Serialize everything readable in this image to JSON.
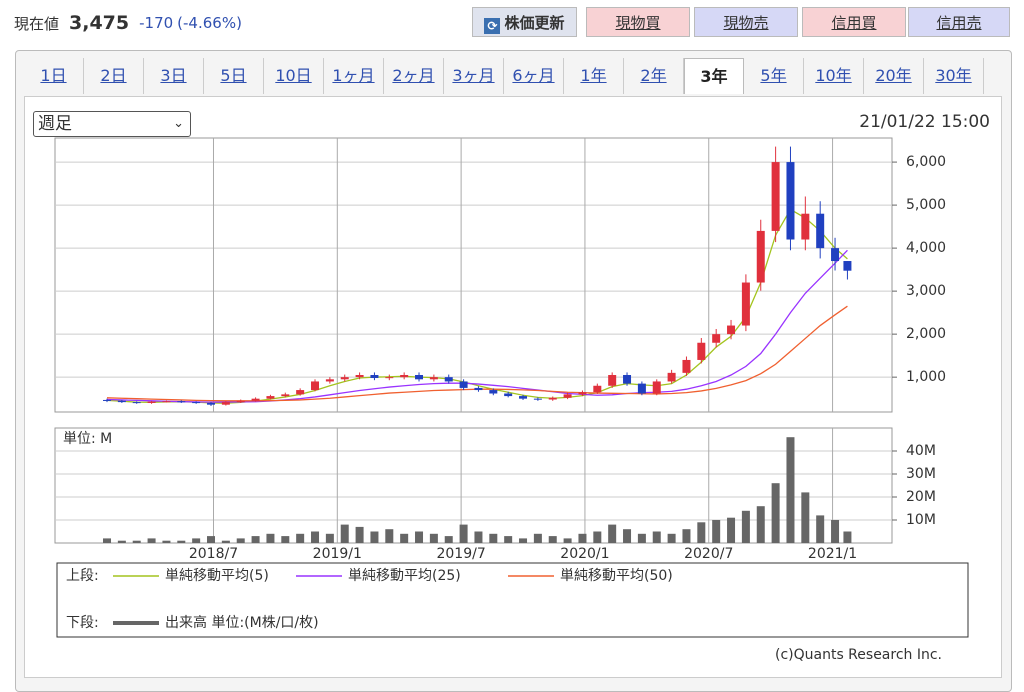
{
  "header": {
    "label": "現在値",
    "price": "3,475",
    "change": "-170",
    "change_pct": "(-4.66%)",
    "buttons": [
      "株価更新",
      "現物買",
      "現物売",
      "信用買",
      "信用売"
    ]
  },
  "tabs": {
    "items": [
      "1日",
      "2日",
      "3日",
      "5日",
      "10日",
      "1ヶ月",
      "2ヶ月",
      "3ヶ月",
      "6ヶ月",
      "1年",
      "2年",
      "3年",
      "5年",
      "10年",
      "20年",
      "30年"
    ],
    "selected": 11
  },
  "select": {
    "value": "週足"
  },
  "timestamp": "21/01/22 15:00",
  "chart_data": [
    {
      "type": "candlestick",
      "color_up": "#e0303c",
      "color_down": "#2040c0",
      "grid": true,
      "xlim": [
        2017.86,
        2021.24
      ],
      "ylim": [
        190,
        6560
      ],
      "yticks": [
        {
          "value": 1000,
          "label": "1,000"
        },
        {
          "value": 2000,
          "label": "2,000"
        },
        {
          "value": 3000,
          "label": "3,000"
        },
        {
          "value": 4000,
          "label": "4,000"
        },
        {
          "value": 5000,
          "label": "5,000"
        },
        {
          "value": 6000,
          "label": "6,000"
        }
      ],
      "x": [
        2018.07,
        2018.13,
        2018.19,
        2018.25,
        2018.31,
        2018.37,
        2018.43,
        2018.49,
        2018.55,
        2018.61,
        2018.67,
        2018.73,
        2018.79,
        2018.85,
        2018.91,
        2018.97,
        2019.03,
        2019.09,
        2019.15,
        2019.21,
        2019.27,
        2019.33,
        2019.39,
        2019.45,
        2019.51,
        2019.57,
        2019.63,
        2019.69,
        2019.75,
        2019.81,
        2019.87,
        2019.93,
        2019.99,
        2020.05,
        2020.11,
        2020.17,
        2020.23,
        2020.29,
        2020.35,
        2020.41,
        2020.47,
        2020.53,
        2020.59,
        2020.65,
        2020.71,
        2020.77,
        2020.83,
        2020.89,
        2020.95,
        2021.01,
        2021.06
      ],
      "open": [
        470,
        450,
        420,
        400,
        430,
        440,
        420,
        400,
        360,
        420,
        450,
        500,
        560,
        600,
        700,
        900,
        950,
        1000,
        1050,
        980,
        1000,
        1050,
        950,
        1000,
        900,
        750,
        700,
        620,
        560,
        500,
        480,
        520,
        600,
        650,
        800,
        1050,
        850,
        620,
        900,
        1100,
        1400,
        1800,
        2000,
        2200,
        3200,
        4400,
        6000,
        4200,
        4800,
        4000,
        3700
      ],
      "high": [
        500,
        470,
        440,
        450,
        460,
        460,
        440,
        420,
        440,
        480,
        530,
        590,
        640,
        740,
        950,
        1000,
        1060,
        1110,
        1110,
        1060,
        1110,
        1110,
        1060,
        1060,
        950,
        790,
        740,
        660,
        590,
        530,
        550,
        640,
        690,
        850,
        1110,
        1110,
        900,
        950,
        1170,
        1480,
        1910,
        2120,
        2330,
        3390,
        4660,
        6360,
        6360,
        5200,
        5090,
        4240,
        3700
      ],
      "low": [
        420,
        400,
        380,
        380,
        410,
        400,
        380,
        330,
        340,
        400,
        430,
        480,
        530,
        570,
        670,
        850,
        900,
        950,
        930,
        930,
        950,
        900,
        900,
        850,
        700,
        660,
        580,
        530,
        470,
        450,
        450,
        490,
        560,
        610,
        750,
        800,
        580,
        580,
        850,
        1030,
        1320,
        1690,
        1880,
        2070,
        3010,
        4140,
        3950,
        3950,
        3760,
        3480,
        3270
      ],
      "close": [
        450,
        420,
        400,
        430,
        440,
        420,
        400,
        360,
        420,
        450,
        500,
        560,
        600,
        700,
        900,
        950,
        1000,
        1050,
        980,
        1000,
        1050,
        950,
        1000,
        900,
        750,
        700,
        620,
        560,
        500,
        480,
        520,
        600,
        650,
        800,
        1050,
        850,
        620,
        900,
        1100,
        1400,
        1800,
        2000,
        2200,
        3200,
        4400,
        6000,
        4200,
        4800,
        4000,
        3700,
        3475
      ],
      "series": [
        {
          "name": "単純移動平均(5)",
          "color": "#a3c41e",
          "values": [
            460,
            440,
            420,
            415,
            425,
            430,
            420,
            400,
            395,
            415,
            445,
            490,
            540,
            600,
            690,
            800,
            900,
            980,
            1000,
            1010,
            1020,
            1000,
            990,
            960,
            890,
            800,
            720,
            650,
            580,
            530,
            510,
            530,
            570,
            640,
            780,
            850,
            820,
            800,
            850,
            1050,
            1350,
            1700,
            1950,
            2400,
            3200,
            4300,
            4900,
            4700,
            4400,
            4000,
            3750
          ]
        },
        {
          "name": "単純移動平均(25)",
          "color": "#9933ff",
          "values": [
            480,
            470,
            460,
            450,
            440,
            430,
            425,
            420,
            420,
            425,
            430,
            445,
            470,
            500,
            540,
            590,
            640,
            690,
            730,
            770,
            800,
            830,
            850,
            860,
            860,
            840,
            810,
            780,
            740,
            700,
            660,
            620,
            600,
            580,
            590,
            620,
            640,
            650,
            670,
            720,
            800,
            900,
            1050,
            1250,
            1550,
            2000,
            2500,
            2950,
            3300,
            3650,
            3950
          ]
        },
        {
          "name": "単純移動平均(50)",
          "color": "#f06030",
          "values": [
            520,
            510,
            500,
            490,
            480,
            470,
            460,
            455,
            450,
            450,
            450,
            455,
            460,
            470,
            490,
            510,
            540,
            570,
            600,
            630,
            650,
            670,
            690,
            700,
            710,
            720,
            720,
            715,
            705,
            690,
            670,
            650,
            640,
            630,
            625,
            620,
            615,
            610,
            620,
            640,
            680,
            740,
            820,
            920,
            1080,
            1300,
            1600,
            1900,
            2200,
            2450,
            2650
          ]
        }
      ]
    },
    {
      "type": "bar",
      "name": "出来高 単位:(M株/口/枚)",
      "unit_label": "単位: M",
      "color": "#666666",
      "grid": true,
      "xlim": [
        2017.86,
        2021.24
      ],
      "ylim": [
        0,
        50
      ],
      "xticks": [
        {
          "value": 2018.5,
          "label": "2018/7"
        },
        {
          "value": 2019,
          "label": "2019/1"
        },
        {
          "value": 2019.5,
          "label": "2019/7"
        },
        {
          "value": 2020,
          "label": "2020/1"
        },
        {
          "value": 2020.5,
          "label": "2020/7"
        },
        {
          "value": 2021,
          "label": "2021/1"
        }
      ],
      "yticks": [
        {
          "value": 10,
          "label": "10M"
        },
        {
          "value": 20,
          "label": "20M"
        },
        {
          "value": 30,
          "label": "30M"
        },
        {
          "value": 40,
          "label": "40M"
        }
      ],
      "x": [
        2018.07,
        2018.13,
        2018.19,
        2018.25,
        2018.31,
        2018.37,
        2018.43,
        2018.49,
        2018.55,
        2018.61,
        2018.67,
        2018.73,
        2018.79,
        2018.85,
        2018.91,
        2018.97,
        2019.03,
        2019.09,
        2019.15,
        2019.21,
        2019.27,
        2019.33,
        2019.39,
        2019.45,
        2019.51,
        2019.57,
        2019.63,
        2019.69,
        2019.75,
        2019.81,
        2019.87,
        2019.93,
        2019.99,
        2020.05,
        2020.11,
        2020.17,
        2020.23,
        2020.29,
        2020.35,
        2020.41,
        2020.47,
        2020.53,
        2020.59,
        2020.65,
        2020.71,
        2020.77,
        2020.83,
        2020.89,
        2020.95,
        2021.01,
        2021.06
      ],
      "values": [
        2,
        1,
        1,
        2,
        1,
        1,
        2,
        3,
        1,
        2,
        3,
        4,
        3,
        4,
        5,
        4,
        8,
        7,
        5,
        6,
        4,
        5,
        4,
        3,
        8,
        5,
        4,
        3,
        2,
        4,
        3,
        2,
        4,
        5,
        8,
        6,
        4,
        5,
        4,
        6,
        9,
        10,
        11,
        14,
        16,
        26,
        46,
        22,
        12,
        10,
        5
      ]
    }
  ],
  "legend": {
    "upper": "上段:",
    "lower": "下段:"
  },
  "copyright": "(c)Quants Research Inc."
}
